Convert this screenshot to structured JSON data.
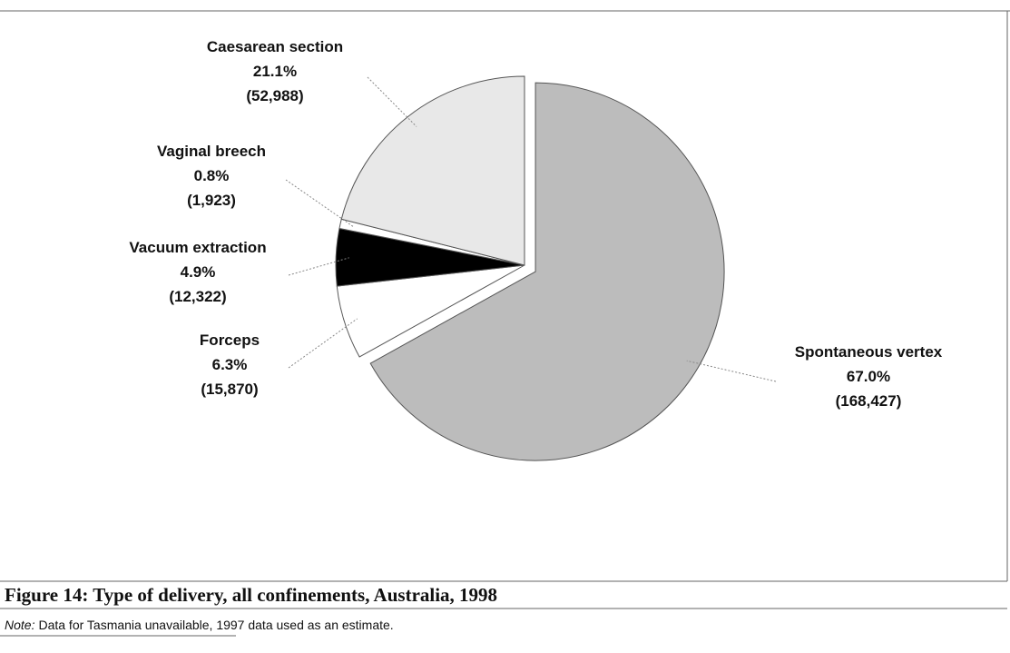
{
  "chart_data": {
    "type": "pie",
    "title": "Figure 14: Type of delivery, all confinements, Australia, 1998",
    "note_label": "Note:",
    "note": "Data for Tasmania unavailable, 1997 data used as an estimate.",
    "categories": [
      "Spontaneous vertex",
      "Forceps",
      "Vacuum extraction",
      "Vaginal breech",
      "Caesarean section"
    ],
    "values": [
      67.0,
      6.3,
      4.9,
      0.8,
      21.1
    ],
    "value_labels": [
      "67.0%",
      "6.3%",
      "4.9%",
      "0.8%",
      "21.1%"
    ],
    "counts": [
      168427,
      15870,
      12322,
      1923,
      52988
    ],
    "count_labels": [
      "(168,427)",
      "(15,870)",
      "(12,322)",
      "(1,923)",
      "(52,988)"
    ],
    "colors": [
      "#bcbcbc",
      "#ffffff",
      "#000000",
      "#ffffff",
      "#e8e8e8"
    ]
  }
}
